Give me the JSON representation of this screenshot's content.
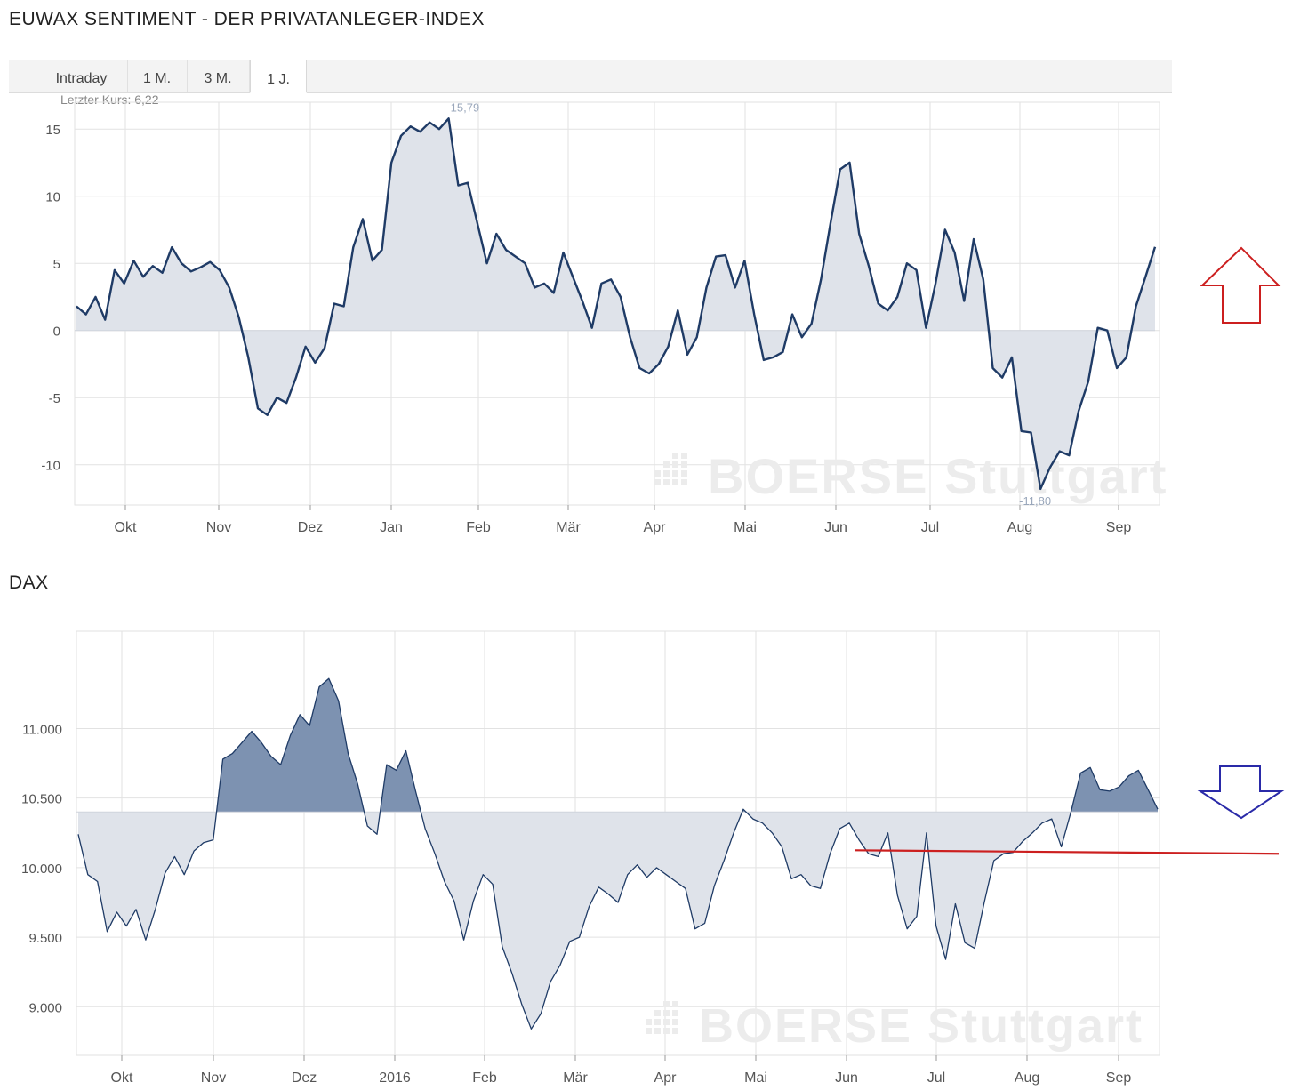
{
  "charts": {
    "sentiment_title": "EUWAX SENTIMENT - DER PRIVATANLEGER-INDEX",
    "dax_title": "DAX"
  },
  "tabs": [
    "Intraday",
    "1 M.",
    "3 M.",
    "1 J."
  ],
  "active_tab": "1 J.",
  "last_price": "Letzter Kurs: 6,22",
  "watermark": "BOERSE Stuttgart",
  "colors": {
    "line": "#1f3b66",
    "area_light": "#dfe3ea",
    "area_dark": "#7d92b1",
    "grid": "#e2e2e2",
    "arrow_up": "#cc1f1f",
    "arrow_down": "#2a2aa8",
    "trend_line": "#cc1f1f"
  },
  "chart_data": [
    {
      "type": "area",
      "months": [
        "Okt",
        "Nov",
        "Dez",
        "Jan",
        "Feb",
        "Mär",
        "Apr",
        "Mai",
        "Jun",
        "Jul",
        "Aug",
        "Sep"
      ],
      "yticks": [
        "15",
        "10",
        "5",
        "0",
        "-5",
        "-10"
      ],
      "ylim": [
        -13,
        17
      ],
      "baseline": 0,
      "max_label": "15,79",
      "min_label": "-11,80",
      "last": 6.22,
      "series": [
        {
          "values": [
            1.8,
            1.2,
            2.5,
            0.8,
            4.5,
            3.5,
            5.2,
            4.0,
            4.8,
            4.3,
            6.2,
            5.0,
            4.4,
            4.7,
            5.1,
            4.5,
            3.2,
            1.0,
            -2.0,
            -5.8,
            -6.3,
            -5.0,
            -5.4,
            -3.5,
            -1.2,
            -2.4,
            -1.3,
            2.0,
            1.8,
            6.2,
            8.3,
            5.2,
            6.0,
            12.5,
            14.5,
            15.2,
            14.8,
            15.5,
            15.0,
            15.79,
            10.8,
            11.0,
            8.0,
            5.0,
            7.2,
            6.0,
            5.5,
            5.0,
            3.2,
            3.5,
            2.8,
            5.8,
            4.0,
            2.2,
            0.2,
            3.5,
            3.8,
            2.5,
            -0.5,
            -2.8,
            -3.2,
            -2.5,
            -1.2,
            1.5,
            -1.8,
            -0.5,
            3.2,
            5.5,
            5.6,
            3.2,
            5.2,
            1.2,
            -2.2,
            -2.0,
            -1.6,
            1.2,
            -0.5,
            0.5,
            3.8,
            8.0,
            12.0,
            12.5,
            7.2,
            4.8,
            2.0,
            1.5,
            2.5,
            5.0,
            4.5,
            0.2,
            3.5,
            7.5,
            5.8,
            2.2,
            6.8,
            3.8,
            -2.8,
            -3.5,
            -2.0,
            -7.5,
            -7.6,
            -11.8,
            -10.2,
            -9.0,
            -9.3,
            -6.0,
            -3.8,
            0.2,
            0.0,
            -2.8,
            -2.0,
            1.8,
            4.0,
            6.22
          ]
        }
      ]
    },
    {
      "type": "area",
      "months": [
        "Okt",
        "Nov",
        "Dez",
        "2016",
        "Feb",
        "Mär",
        "Apr",
        "Mai",
        "Jun",
        "Jul",
        "Aug",
        "Sep"
      ],
      "yticks": [
        "11.000",
        "10.500",
        "10.000",
        "9.500",
        "9.000"
      ],
      "ylim": [
        8650,
        11700
      ],
      "baseline": 10400,
      "trend_line": [
        10125,
        10100
      ],
      "series": [
        {
          "values": [
            10240,
            9950,
            9900,
            9540,
            9680,
            9580,
            9700,
            9480,
            9700,
            9960,
            10080,
            9950,
            10120,
            10180,
            10200,
            10780,
            10820,
            10900,
            10980,
            10900,
            10800,
            10740,
            10950,
            11100,
            11020,
            11300,
            11360,
            11200,
            10820,
            10600,
            10300,
            10240,
            10740,
            10700,
            10840,
            10550,
            10280,
            10100,
            9900,
            9760,
            9480,
            9760,
            9950,
            9880,
            9430,
            9240,
            9020,
            8840,
            8950,
            9180,
            9300,
            9470,
            9500,
            9720,
            9860,
            9810,
            9750,
            9950,
            10020,
            9930,
            10000,
            9950,
            9900,
            9850,
            9560,
            9600,
            9870,
            10050,
            10250,
            10420,
            10350,
            10320,
            10250,
            10150,
            9920,
            9950,
            9870,
            9850,
            10100,
            10280,
            10320,
            10200,
            10100,
            10080,
            10250,
            9800,
            9560,
            9650,
            10250,
            9580,
            9340,
            9740,
            9460,
            9420,
            9750,
            10050,
            10100,
            10110,
            10190,
            10250,
            10320,
            10350,
            10150,
            10400,
            10680,
            10720,
            10560,
            10550,
            10580,
            10660,
            10700,
            10560,
            10420
          ]
        }
      ]
    }
  ]
}
